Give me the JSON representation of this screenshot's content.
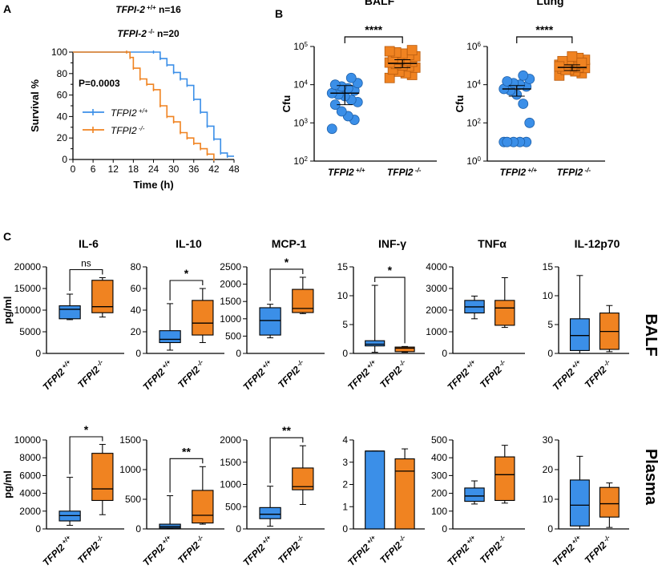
{
  "figure": {
    "panel_a": "A",
    "panel_b": "B",
    "panel_c": "C",
    "row_labels": {
      "balf": "BALF",
      "plasma": "Plasma"
    }
  },
  "colors": {
    "wt": "#3b8fe8",
    "ko": "#f08321",
    "axis": "#000000"
  },
  "chart_data": [
    {
      "id": "survival",
      "type": "line",
      "title_line1_gene": "TFPI-2",
      "title_line1_sup": "+/+",
      "title_line1_n": "n=16",
      "title_line2_gene": "TFPI-2",
      "title_line2_sup": "-/-",
      "title_line2_n": "n=20",
      "xlabel": "Time (h)",
      "ylabel": "Survival %",
      "xlim": [
        0,
        48
      ],
      "ylim": [
        0,
        100
      ],
      "xticks": [
        0,
        6,
        12,
        18,
        24,
        30,
        36,
        42,
        48
      ],
      "yticks": [
        0,
        10,
        20,
        30,
        40,
        50,
        60,
        70,
        80,
        90,
        100
      ],
      "pvalue": "P=0.0003",
      "legend": [
        {
          "name": "TFPI2",
          "sup": "+/+",
          "color": "#3b8fe8"
        },
        {
          "name": "TFPI2",
          "sup": "-/-",
          "color": "#f08321"
        }
      ],
      "series": [
        {
          "name": "TFPI2 +/+",
          "color": "#3b8fe8",
          "x": [
            0,
            24,
            26,
            28,
            30,
            32,
            34,
            36,
            38,
            40,
            42,
            44,
            46
          ],
          "y": [
            100,
            100,
            94,
            88,
            81,
            75,
            69,
            56,
            44,
            31,
            19,
            6,
            3
          ]
        },
        {
          "name": "TFPI2 -/-",
          "color": "#f08321",
          "x": [
            0,
            16,
            17,
            18,
            20,
            22,
            24,
            26,
            28,
            30,
            32,
            34,
            36,
            38,
            40,
            42
          ],
          "y": [
            100,
            100,
            95,
            85,
            75,
            70,
            65,
            50,
            40,
            35,
            25,
            20,
            15,
            10,
            5,
            0
          ]
        }
      ]
    },
    {
      "id": "balf_cfu",
      "type": "scatter",
      "title": "BALF",
      "ylabel": "Cfu",
      "yscale": "log",
      "ylim_exp": [
        2,
        5
      ],
      "ytick_exps": [
        "2",
        "3",
        "4",
        "5"
      ],
      "significance": "****",
      "groups": [
        {
          "label": "TFPI2",
          "sup": "+/+",
          "color": "#3b8fe8",
          "marker": "circle",
          "mean": 6000,
          "sem_low": 3000,
          "sem_high": 9500,
          "values": [
            700,
            1200,
            1500,
            2000,
            3000,
            3500,
            4000,
            5000,
            5500,
            6000,
            7000,
            8000,
            9000,
            10000,
            11000,
            15000
          ]
        },
        {
          "label": "TFPI2",
          "sup": "-/-",
          "color": "#f08321",
          "marker": "square",
          "mean": 36000,
          "sem_low": 28000,
          "sem_high": 45000,
          "values": [
            15000,
            18000,
            20000,
            22000,
            25000,
            28000,
            30000,
            32000,
            35000,
            38000,
            40000,
            42000,
            45000,
            50000,
            55000,
            60000,
            65000,
            70000,
            75000,
            80000
          ]
        }
      ]
    },
    {
      "id": "lung_cfu",
      "type": "scatter",
      "title": "Lung",
      "ylabel": "Cfu",
      "yscale": "log",
      "ylim_exp": [
        0,
        6
      ],
      "ytick_exps": [
        "0",
        "2",
        "4",
        "6"
      ],
      "significance": "****",
      "groups": [
        {
          "label": "TFPI2",
          "sup": "+/+",
          "color": "#3b8fe8",
          "marker": "circle",
          "mean": 6000,
          "sem_low": 2500,
          "sem_high": 9000,
          "values": [
            10,
            10,
            10,
            10,
            10,
            100,
            1000,
            3000,
            5000,
            6000,
            8000,
            10000,
            12000,
            15000,
            20000,
            30000
          ]
        },
        {
          "label": "TFPI2",
          "sup": "-/-",
          "color": "#f08321",
          "marker": "square",
          "mean": 80000,
          "sem_low": 55000,
          "sem_high": 110000,
          "values": [
            30000,
            40000,
            50000,
            60000,
            70000,
            75000,
            80000,
            90000,
            100000,
            110000,
            120000,
            130000,
            150000,
            170000,
            200000,
            250000,
            300000,
            60000,
            90000,
            140000
          ]
        }
      ]
    },
    {
      "id": "balf_il6",
      "type": "box",
      "row": "BALF",
      "title": "IL-6",
      "ylabel": "pg/ml",
      "ylim": [
        0,
        20000
      ],
      "yticks": [
        0,
        5000,
        10000,
        15000,
        20000
      ],
      "significance": "ns",
      "groups": [
        {
          "label": "TFPI2",
          "sup": "+/+",
          "color": "#3b8fe8",
          "min": 7800,
          "q1": 8000,
          "median": 10200,
          "q3": 11000,
          "max": 13700
        },
        {
          "label": "TFPI2",
          "sup": "-/-",
          "color": "#f08321",
          "min": 8400,
          "q1": 9400,
          "median": 10800,
          "q3": 16900,
          "max": 17500
        }
      ]
    },
    {
      "id": "balf_il10",
      "type": "box",
      "row": "BALF",
      "title": "IL-10",
      "ylabel": "",
      "ylim": [
        0,
        80
      ],
      "yticks": [
        0,
        20,
        40,
        60,
        80
      ],
      "significance": "*",
      "groups": [
        {
          "label": "TFPI2",
          "sup": "+/+",
          "color": "#3b8fe8",
          "min": 3,
          "q1": 10,
          "median": 13,
          "q3": 21,
          "max": 46
        },
        {
          "label": "TFPI2",
          "sup": "-/-",
          "color": "#f08321",
          "min": 10,
          "q1": 17,
          "median": 28,
          "q3": 49,
          "max": 60
        }
      ]
    },
    {
      "id": "balf_mcp1",
      "type": "box",
      "row": "BALF",
      "title": "MCP-1",
      "ylabel": "",
      "ylim": [
        0,
        2500
      ],
      "yticks": [
        0,
        500,
        1000,
        1500,
        2000,
        2500
      ],
      "significance": "*",
      "groups": [
        {
          "label": "TFPI2",
          "sup": "+/+",
          "color": "#3b8fe8",
          "min": 450,
          "q1": 530,
          "median": 950,
          "q3": 1320,
          "max": 1420
        },
        {
          "label": "TFPI2",
          "sup": "-/-",
          "color": "#f08321",
          "min": 1150,
          "q1": 1180,
          "median": 1300,
          "q3": 1850,
          "max": 2200
        }
      ]
    },
    {
      "id": "balf_infg",
      "type": "box",
      "row": "BALF",
      "title": "INF-γ",
      "ylabel": "",
      "ylim": [
        0,
        15
      ],
      "yticks": [
        0,
        5,
        10,
        15
      ],
      "significance": "*",
      "groups": [
        {
          "label": "TFPI2",
          "sup": "+/+",
          "color": "#3b8fe8",
          "min": 0.2,
          "q1": 1.3,
          "median": 1.6,
          "q3": 2.2,
          "max": 11.8
        },
        {
          "label": "TFPI2",
          "sup": "-/-",
          "color": "#f08321",
          "min": 0.2,
          "q1": 0.3,
          "median": 0.9,
          "q3": 1.1,
          "max": 1.2
        }
      ]
    },
    {
      "id": "balf_tnfa",
      "type": "box",
      "row": "BALF",
      "title": "TNFα",
      "ylabel": "",
      "ylim": [
        0,
        4000
      ],
      "yticks": [
        0,
        1000,
        2000,
        3000,
        4000
      ],
      "significance": "",
      "groups": [
        {
          "label": "TFPI2",
          "sup": "+/+",
          "color": "#3b8fe8",
          "min": 1600,
          "q1": 1870,
          "median": 2150,
          "q3": 2450,
          "max": 2650
        },
        {
          "label": "TFPI2",
          "sup": "-/-",
          "color": "#f08321",
          "min": 1200,
          "q1": 1300,
          "median": 2100,
          "q3": 2450,
          "max": 3500
        }
      ]
    },
    {
      "id": "balf_il12p70",
      "type": "box",
      "row": "BALF",
      "title": "IL-12p70",
      "ylabel": "",
      "ylim": [
        0,
        15
      ],
      "yticks": [
        0,
        5,
        10,
        15
      ],
      "significance": "",
      "groups": [
        {
          "label": "TFPI2",
          "sup": "+/+",
          "color": "#3b8fe8",
          "min": 0,
          "q1": 0.5,
          "median": 3.1,
          "q3": 6.0,
          "max": 13.5
        },
        {
          "label": "TFPI2",
          "sup": "-/-",
          "color": "#f08321",
          "min": 0.3,
          "q1": 0.7,
          "median": 3.8,
          "q3": 7.0,
          "max": 8.3
        }
      ]
    },
    {
      "id": "plasma_il6",
      "type": "box",
      "row": "Plasma",
      "title": "",
      "ylabel": "pg/ml",
      "ylim": [
        0,
        10000
      ],
      "yticks": [
        0,
        2000,
        4000,
        6000,
        8000,
        10000
      ],
      "significance": "*",
      "groups": [
        {
          "label": "TFPI2",
          "sup": "+/+",
          "color": "#3b8fe8",
          "min": 400,
          "q1": 900,
          "median": 1500,
          "q3": 2000,
          "max": 5800
        },
        {
          "label": "TFPI2",
          "sup": "-/-",
          "color": "#f08321",
          "min": 1600,
          "q1": 3200,
          "median": 4500,
          "q3": 8500,
          "max": 9500
        }
      ]
    },
    {
      "id": "plasma_il10",
      "type": "box",
      "row": "Plasma",
      "title": "",
      "ylabel": "",
      "ylim": [
        0,
        1500
      ],
      "yticks": [
        0,
        500,
        1000,
        1500
      ],
      "significance": "**",
      "groups": [
        {
          "label": "TFPI2",
          "sup": "+/+",
          "color": "#3b8fe8",
          "min": 5,
          "q1": 15,
          "median": 40,
          "q3": 80,
          "max": 560
        },
        {
          "label": "TFPI2",
          "sup": "-/-",
          "color": "#f08321",
          "min": 80,
          "q1": 100,
          "median": 230,
          "q3": 650,
          "max": 1050
        }
      ]
    },
    {
      "id": "plasma_mcp1",
      "type": "box",
      "row": "Plasma",
      "title": "",
      "ylabel": "",
      "ylim": [
        0,
        2000
      ],
      "yticks": [
        0,
        500,
        1000,
        1500,
        2000
      ],
      "significance": "**",
      "groups": [
        {
          "label": "TFPI2",
          "sup": "+/+",
          "color": "#3b8fe8",
          "min": 60,
          "q1": 230,
          "median": 330,
          "q3": 480,
          "max": 960
        },
        {
          "label": "TFPI2",
          "sup": "-/-",
          "color": "#f08321",
          "min": 550,
          "q1": 880,
          "median": 950,
          "q3": 1370,
          "max": 1870
        }
      ]
    },
    {
      "id": "plasma_infg",
      "type": "box",
      "row": "Plasma",
      "title": "",
      "ylabel": "",
      "ylim": [
        0,
        4
      ],
      "yticks": [
        0,
        1,
        2,
        3,
        4
      ],
      "significance": "",
      "groups": [
        {
          "label": "TFPI2",
          "sup": "+/+",
          "color": "#3b8fe8",
          "min": 0,
          "q1": 0,
          "median": 3.5,
          "q3": 3.5,
          "max": 3.5
        },
        {
          "label": "TFPI2",
          "sup": "-/-",
          "color": "#f08321",
          "min": 0,
          "q1": 0,
          "median": 2.6,
          "q3": 3.15,
          "max": 3.6
        }
      ]
    },
    {
      "id": "plasma_tnfa",
      "type": "box",
      "row": "Plasma",
      "title": "",
      "ylabel": "",
      "ylim": [
        0,
        500
      ],
      "yticks": [
        0,
        100,
        200,
        300,
        400,
        500
      ],
      "significance": "",
      "groups": [
        {
          "label": "TFPI2",
          "sup": "+/+",
          "color": "#3b8fe8",
          "min": 140,
          "q1": 155,
          "median": 185,
          "q3": 230,
          "max": 270
        },
        {
          "label": "TFPI2",
          "sup": "-/-",
          "color": "#f08321",
          "min": 145,
          "q1": 160,
          "median": 305,
          "q3": 405,
          "max": 470
        }
      ]
    },
    {
      "id": "plasma_il12p70",
      "type": "box",
      "row": "Plasma",
      "title": "",
      "ylabel": "",
      "ylim": [
        0,
        30
      ],
      "yticks": [
        0,
        10,
        20,
        30
      ],
      "significance": "",
      "groups": [
        {
          "label": "TFPI2",
          "sup": "+/+",
          "color": "#3b8fe8",
          "min": 0,
          "q1": 1,
          "median": 8,
          "q3": 16.5,
          "max": 24.5
        },
        {
          "label": "TFPI2",
          "sup": "-/-",
          "color": "#f08321",
          "min": 0.5,
          "q1": 4,
          "median": 8.5,
          "q3": 14,
          "max": 15.5
        }
      ]
    }
  ]
}
